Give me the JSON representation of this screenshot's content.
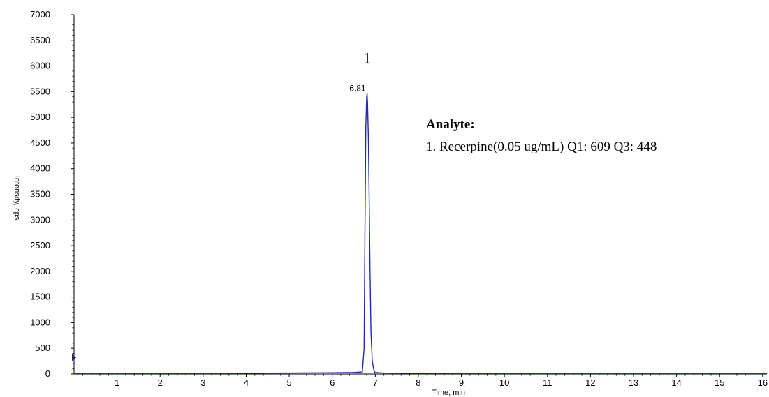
{
  "chart_data": {
    "type": "line",
    "xlabel": "Time, min",
    "ylabel": "Intensity, cps",
    "xlim": [
      0,
      16.1
    ],
    "ylim": [
      0,
      7000
    ],
    "x_ticks": [
      1,
      2,
      3,
      4,
      5,
      6,
      7,
      8,
      9,
      10,
      11,
      12,
      13,
      14,
      15,
      16
    ],
    "y_ticks": [
      0,
      500,
      1000,
      1500,
      2000,
      2500,
      3000,
      3500,
      4000,
      4500,
      5000,
      5500,
      6000,
      6500,
      7000
    ],
    "series": [
      {
        "color": "#1f2bb3",
        "x": [
          0,
          1,
          2,
          3,
          4,
          5,
          6,
          6.5,
          6.7,
          6.74,
          6.76,
          6.78,
          6.8,
          6.81,
          6.82,
          6.84,
          6.86,
          6.88,
          6.9,
          6.93,
          6.97,
          7.0,
          7.2,
          8,
          9,
          10,
          11,
          12,
          13,
          14,
          15,
          16.1
        ],
        "y": [
          10,
          10,
          12,
          10,
          15,
          20,
          25,
          30,
          40,
          500,
          2800,
          4800,
          5400,
          5460,
          5300,
          4600,
          3300,
          1900,
          800,
          250,
          60,
          30,
          20,
          15,
          12,
          12,
          10,
          10,
          10,
          10,
          10,
          10
        ]
      }
    ],
    "peak_labels": [
      {
        "x": 6.81,
        "y": 5460,
        "text": "6.81"
      }
    ],
    "peak_numbers": [
      {
        "x": 6.81,
        "y": 6150,
        "text": "1"
      }
    ],
    "legend": {
      "placement": "right",
      "title": "Analyte:",
      "entries": [
        "1. Recerpine(0.05 ug/mL) Q1: 609 Q3: 448"
      ]
    },
    "marker_color": "#1f2b6e",
    "grid": false
  }
}
